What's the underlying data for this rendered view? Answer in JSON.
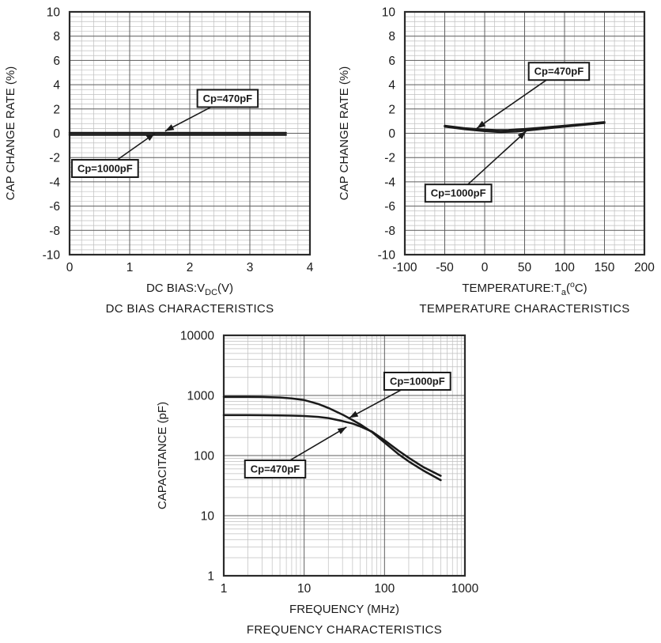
{
  "page": {
    "background": "#ffffff"
  },
  "colors": {
    "line": "#1a1a1a",
    "grid_minor": "#bfbfbf",
    "grid_major": "#5f5f5f",
    "frame": "#2a2a2a",
    "text": "#1a1a1a",
    "annotation_bg": "#ffffff",
    "annotation_border": "#1a1a1a"
  },
  "chart_data": [
    {
      "id": "dc_bias",
      "type": "line",
      "title": "DC BIAS CHARACTERISTICS",
      "xlabel_segments": [
        {
          "t": "DC BIAS:V"
        },
        {
          "t": "DC",
          "sub": true
        },
        {
          "t": "(V)"
        }
      ],
      "ylabel": "CAP CHANGE RATE (%)",
      "x_scale": "linear",
      "y_scale": "linear",
      "xlim": [
        0,
        4
      ],
      "ylim": [
        -10,
        10
      ],
      "xticks": [
        0,
        1,
        2,
        3,
        4
      ],
      "yticks": [
        10,
        8,
        6,
        4,
        2,
        0,
        -2,
        -4,
        -6,
        -8,
        -10
      ],
      "x_minor_step": 0.2,
      "y_minor_step": 0.4,
      "grid": true,
      "legend_position": "none",
      "series": [
        {
          "name": "Cp=470pF",
          "points": [
            [
              0,
              0.03
            ],
            [
              3.6,
              0.03
            ]
          ]
        },
        {
          "name": "Cp=1000pF",
          "points": [
            [
              0,
              -0.13
            ],
            [
              3.6,
              -0.13
            ]
          ]
        }
      ],
      "annotations": [
        {
          "label": "Cp=470pF",
          "box_center": [
            2.63,
            2.87
          ],
          "tip": [
            1.59,
            0.18
          ]
        },
        {
          "label": "Cp=1000pF",
          "box_center": [
            0.59,
            -2.9
          ],
          "tip": [
            1.42,
            0.0
          ]
        }
      ]
    },
    {
      "id": "temperature",
      "type": "line",
      "title": "TEMPERATURE CHARACTERISTICS",
      "xlabel_segments": [
        {
          "t": "TEMPERATURE:T"
        },
        {
          "t": "a",
          "sub": true
        },
        {
          "t": "("
        },
        {
          "t": "o",
          "sup": true
        },
        {
          "t": "C)"
        }
      ],
      "ylabel": "CAP CHANGE RATE (%)",
      "x_scale": "linear",
      "y_scale": "linear",
      "xlim": [
        -100,
        200
      ],
      "ylim": [
        -10,
        10
      ],
      "xticks": [
        -100,
        -50,
        0,
        50,
        100,
        150,
        200
      ],
      "yticks": [
        10,
        8,
        6,
        4,
        2,
        0,
        -2,
        -4,
        -6,
        -8,
        -10
      ],
      "x_minor_step": 12.5,
      "y_minor_step": 0.4,
      "grid": true,
      "legend_position": "none",
      "series": [
        {
          "name": "Cp=470pF",
          "points": [
            [
              -50,
              0.62
            ],
            [
              -25,
              0.42
            ],
            [
              0,
              0.3
            ],
            [
              15,
              0.26
            ],
            [
              30,
              0.27
            ],
            [
              50,
              0.35
            ],
            [
              75,
              0.48
            ],
            [
              100,
              0.62
            ],
            [
              125,
              0.76
            ],
            [
              150,
              0.92
            ]
          ]
        },
        {
          "name": "Cp=1000pF",
          "points": [
            [
              -50,
              0.55
            ],
            [
              -25,
              0.33
            ],
            [
              0,
              0.18
            ],
            [
              20,
              0.1
            ],
            [
              40,
              0.15
            ],
            [
              60,
              0.28
            ],
            [
              80,
              0.42
            ],
            [
              100,
              0.55
            ],
            [
              125,
              0.7
            ],
            [
              150,
              0.85
            ]
          ]
        }
      ],
      "annotations": [
        {
          "label": "Cp=470pF",
          "box_center": [
            93,
            5.1
          ],
          "tip": [
            -10,
            0.4
          ]
        },
        {
          "label": "Cp=1000pF",
          "box_center": [
            -33,
            -4.93
          ],
          "tip": [
            52,
            0.18
          ]
        }
      ]
    },
    {
      "id": "frequency",
      "type": "line",
      "title": "FREQUENCY CHARACTERISTICS",
      "xlabel_segments": [
        {
          "t": "FREQUENCY (MHz)"
        }
      ],
      "ylabel": "CAPACITANCE (pF)",
      "x_scale": "log",
      "y_scale": "log",
      "xlim": [
        1,
        1000
      ],
      "ylim": [
        1,
        10000
      ],
      "xticks": [
        1,
        10,
        100,
        1000
      ],
      "yticks": [
        10000,
        1000,
        100,
        10,
        1
      ],
      "grid": true,
      "legend_position": "none",
      "series": [
        {
          "name": "Cp=1000pF",
          "points": [
            [
              1,
              950
            ],
            [
              2,
              948
            ],
            [
              3,
              944
            ],
            [
              5,
              925
            ],
            [
              7,
              895
            ],
            [
              10,
              840
            ],
            [
              15,
              720
            ],
            [
              20,
              620
            ],
            [
              30,
              480
            ],
            [
              40,
              390
            ],
            [
              50,
              330
            ],
            [
              70,
              245
            ],
            [
              100,
              165
            ],
            [
              150,
              105
            ],
            [
              200,
              80
            ],
            [
              300,
              57
            ],
            [
              500,
              39
            ]
          ]
        },
        {
          "name": "Cp=470pF",
          "points": [
            [
              1,
              470
            ],
            [
              2,
              470
            ],
            [
              3,
              469
            ],
            [
              5,
              466
            ],
            [
              7,
              462
            ],
            [
              10,
              455
            ],
            [
              15,
              440
            ],
            [
              20,
              420
            ],
            [
              30,
              375
            ],
            [
              40,
              340
            ],
            [
              50,
              305
            ],
            [
              70,
              250
            ],
            [
              100,
              180
            ],
            [
              150,
              120
            ],
            [
              200,
              92
            ],
            [
              300,
              65
            ],
            [
              500,
              46
            ]
          ]
        }
      ],
      "annotations": [
        {
          "label": "Cp=1000pF",
          "box_center": [
            256,
            1726
          ],
          "tip": [
            36.4,
            424
          ]
        },
        {
          "label": "Cp=470pF",
          "box_center": [
            4.36,
            59.7
          ],
          "tip": [
            33.7,
            298
          ]
        }
      ]
    }
  ]
}
